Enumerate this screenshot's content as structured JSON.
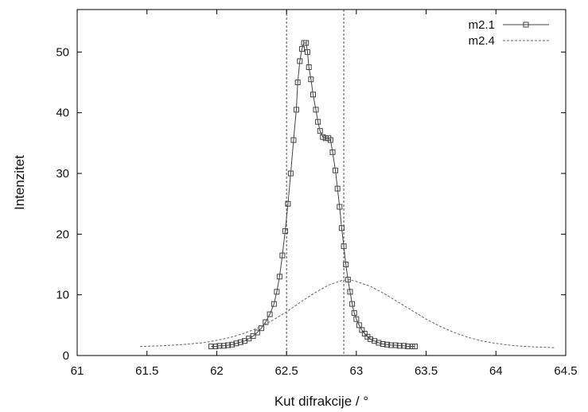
{
  "chart_data": {
    "type": "line",
    "xlabel": "Kut difrakcije / °",
    "ylabel": "Intenzitet",
    "xlim": [
      61,
      64.5
    ],
    "ylim": [
      0,
      57
    ],
    "x_ticks": [
      61,
      61.5,
      62,
      62.5,
      63,
      63.5,
      64,
      64.5
    ],
    "x_tick_labels": [
      "61",
      "61.5",
      "62",
      "62.5",
      "63",
      "63.5",
      "64",
      "64.5"
    ],
    "y_ticks": [
      0,
      10,
      20,
      30,
      40,
      50
    ],
    "y_tick_labels": [
      "0",
      "10",
      "20",
      "30",
      "40",
      "50"
    ],
    "grid": false,
    "legend_position": "top-right",
    "vertical_reference_lines": [
      62.5,
      62.91
    ],
    "series": [
      {
        "name": "m2.1",
        "style": "solid line with square markers",
        "color": "#444444",
        "points": [
          [
            61.96,
            1.5
          ],
          [
            61.99,
            1.5
          ],
          [
            62.02,
            1.6
          ],
          [
            62.05,
            1.6
          ],
          [
            62.08,
            1.7
          ],
          [
            62.11,
            1.8
          ],
          [
            62.14,
            2.0
          ],
          [
            62.17,
            2.2
          ],
          [
            62.2,
            2.4
          ],
          [
            62.23,
            2.8
          ],
          [
            62.26,
            3.2
          ],
          [
            62.29,
            3.8
          ],
          [
            62.32,
            4.5
          ],
          [
            62.35,
            5.5
          ],
          [
            62.38,
            6.8
          ],
          [
            62.41,
            8.5
          ],
          [
            62.43,
            10.5
          ],
          [
            62.45,
            13.0
          ],
          [
            62.47,
            16.5
          ],
          [
            62.49,
            20.5
          ],
          [
            62.51,
            25.0
          ],
          [
            62.53,
            30.0
          ],
          [
            62.55,
            35.5
          ],
          [
            62.57,
            40.5
          ],
          [
            62.58,
            45.0
          ],
          [
            62.595,
            48.5
          ],
          [
            62.61,
            50.5
          ],
          [
            62.625,
            51.5
          ],
          [
            62.64,
            51.5
          ],
          [
            62.65,
            50.0
          ],
          [
            62.66,
            47.5
          ],
          [
            62.675,
            45.5
          ],
          [
            62.69,
            43.0
          ],
          [
            62.71,
            40.5
          ],
          [
            62.725,
            38.5
          ],
          [
            62.74,
            37.0
          ],
          [
            62.76,
            36.0
          ],
          [
            62.78,
            35.8
          ],
          [
            62.8,
            35.8
          ],
          [
            62.815,
            35.5
          ],
          [
            62.83,
            33.5
          ],
          [
            62.85,
            30.5
          ],
          [
            62.865,
            27.5
          ],
          [
            62.88,
            24.5
          ],
          [
            62.895,
            21.0
          ],
          [
            62.91,
            18.0
          ],
          [
            62.925,
            15.0
          ],
          [
            62.94,
            12.5
          ],
          [
            62.955,
            10.5
          ],
          [
            62.97,
            8.5
          ],
          [
            62.985,
            7.0
          ],
          [
            63.0,
            6.0
          ],
          [
            63.02,
            5.0
          ],
          [
            63.04,
            4.2
          ],
          [
            63.06,
            3.6
          ],
          [
            63.08,
            3.1
          ],
          [
            63.1,
            2.7
          ],
          [
            63.13,
            2.4
          ],
          [
            63.16,
            2.1
          ],
          [
            63.19,
            1.9
          ],
          [
            63.22,
            1.8
          ],
          [
            63.25,
            1.7
          ],
          [
            63.28,
            1.7
          ],
          [
            63.31,
            1.6
          ],
          [
            63.34,
            1.6
          ],
          [
            63.37,
            1.5
          ],
          [
            63.4,
            1.5
          ],
          [
            63.42,
            1.5
          ]
        ]
      },
      {
        "name": "m2.4",
        "style": "dashed line",
        "color": "#666666",
        "points": [
          [
            61.45,
            1.5
          ],
          [
            61.6,
            1.6
          ],
          [
            61.75,
            1.8
          ],
          [
            61.9,
            2.1
          ],
          [
            62.0,
            2.5
          ],
          [
            62.1,
            3.0
          ],
          [
            62.2,
            3.7
          ],
          [
            62.3,
            4.6
          ],
          [
            62.4,
            5.8
          ],
          [
            62.5,
            7.2
          ],
          [
            62.6,
            8.8
          ],
          [
            62.7,
            10.3
          ],
          [
            62.8,
            11.6
          ],
          [
            62.9,
            12.4
          ],
          [
            62.95,
            12.5
          ],
          [
            63.0,
            12.2
          ],
          [
            63.1,
            11.4
          ],
          [
            63.2,
            10.2
          ],
          [
            63.3,
            8.8
          ],
          [
            63.4,
            7.4
          ],
          [
            63.5,
            6.0
          ],
          [
            63.6,
            4.8
          ],
          [
            63.7,
            3.8
          ],
          [
            63.8,
            3.0
          ],
          [
            63.9,
            2.4
          ],
          [
            64.0,
            2.0
          ],
          [
            64.1,
            1.7
          ],
          [
            64.2,
            1.5
          ],
          [
            64.3,
            1.4
          ],
          [
            64.42,
            1.3
          ]
        ]
      }
    ]
  }
}
